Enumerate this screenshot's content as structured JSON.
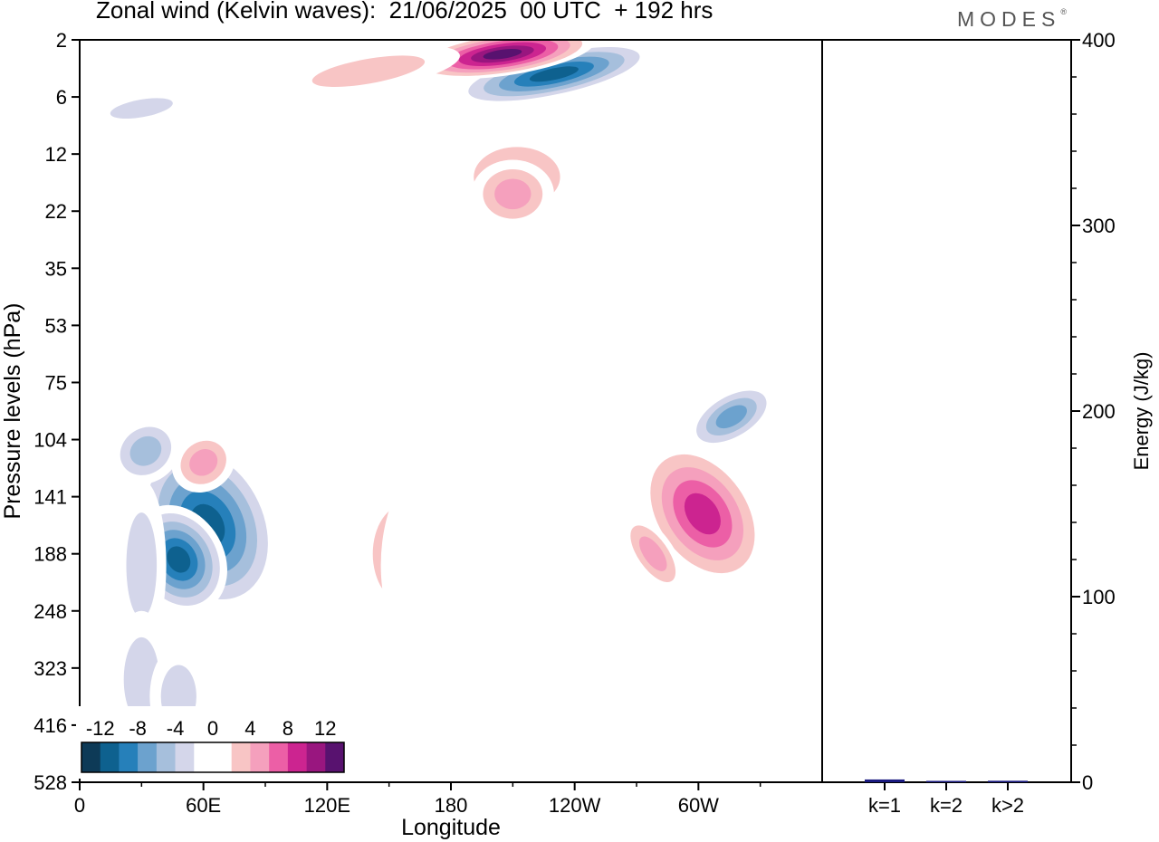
{
  "title": "Zonal wind (Kelvin waves):  21/06/2025  00 UTC  + 192 hrs",
  "brand": "MODES",
  "brand_mark": "®",
  "chart_data": [
    {
      "type": "heatmap",
      "xlabel": "Longitude",
      "ylabel": "Pressure levels (hPa)",
      "x_ticks": [
        "0",
        "60E",
        "120E",
        "180",
        "120W",
        "60W"
      ],
      "x_tick_values": [
        0,
        60,
        120,
        180,
        240,
        300
      ],
      "xlim": [
        0,
        360
      ],
      "y_ticks": [
        "2",
        "6",
        "12",
        "22",
        "35",
        "53",
        "75",
        "104",
        "141",
        "188",
        "248",
        "323",
        "416",
        "528"
      ],
      "y_reversed": true,
      "colorbar": {
        "labels": [
          "-12",
          "-8",
          "-4",
          "0",
          "4",
          "8",
          "12"
        ],
        "colors": [
          "#0d3a57",
          "#0e618f",
          "#2680ba",
          "#6ca2ce",
          "#a6bfdc",
          "#d4d6ea",
          "#ffffff",
          "#ffffff",
          "#f8c5c5",
          "#f5a0bd",
          "#ec5fa6",
          "#cc2490",
          "#99167f",
          "#58126f"
        ]
      },
      "blobs": [
        {
          "lon": 62,
          "lev": 8.5,
          "rx": 32,
          "ry": 1.6,
          "rot": -25,
          "value": -12
        },
        {
          "lon": 48,
          "lev": 9.1,
          "rx": 22,
          "ry": 1.0,
          "rot": -30,
          "value": -12
        },
        {
          "lon": 32,
          "lev": 7.2,
          "rx": 18,
          "ry": 0.55,
          "rot": -35,
          "value": -7
        },
        {
          "lon": 30,
          "lev": 9.2,
          "rx": 12,
          "ry": 1.5,
          "rot": 0,
          "value": -4
        },
        {
          "lon": 30,
          "lev": 11.2,
          "rx": 14,
          "ry": 1.2,
          "rot": 0,
          "value": -4
        },
        {
          "lon": 48,
          "lev": 11.5,
          "rx": 14,
          "ry": 0.9,
          "rot": 0,
          "value": -4
        },
        {
          "lon": 85,
          "lev": 11.5,
          "rx": 10,
          "ry": 1.4,
          "rot": 0,
          "value": -3
        },
        {
          "lon": 110,
          "lev": 11.6,
          "rx": 8,
          "ry": 1.3,
          "rot": 0,
          "value": -3
        },
        {
          "lon": 60,
          "lev": 7.4,
          "rx": 16,
          "ry": 0.5,
          "rot": -35,
          "value": 6
        },
        {
          "lon": 18,
          "lev": 6.1,
          "rx": 12,
          "ry": 0.45,
          "rot": -25,
          "value": 3
        },
        {
          "lon": 158,
          "lev": 9.0,
          "rx": 22,
          "ry": 1.2,
          "rot": 0,
          "value": 6
        },
        {
          "lon": 182,
          "lev": 9.2,
          "rx": 36,
          "ry": 2.1,
          "rot": 0,
          "value": 3
        },
        {
          "lon": 200,
          "lev": 11.0,
          "rx": 30,
          "ry": 1.4,
          "rot": 0,
          "value": 2
        },
        {
          "lon": 232,
          "lev": 9.2,
          "rx": 14,
          "ry": 1.2,
          "rot": 0,
          "value": 3
        },
        {
          "lon": 258,
          "lev": 8.4,
          "rx": 20,
          "ry": 1.2,
          "rot": -30,
          "value": 3
        },
        {
          "lon": 218,
          "lev": 6.3,
          "rx": 36,
          "ry": 0.45,
          "rot": -12,
          "value": 3
        },
        {
          "lon": 302,
          "lev": 8.3,
          "rx": 26,
          "ry": 1.4,
          "rot": -35,
          "value": 11
        },
        {
          "lon": 278,
          "lev": 9.0,
          "rx": 10,
          "ry": 0.8,
          "rot": -35,
          "value": 6
        },
        {
          "lon": 316,
          "lev": 6.6,
          "rx": 24,
          "ry": 0.45,
          "rot": -30,
          "value": -8
        },
        {
          "lon": 300,
          "lev": 5.4,
          "rx": 20,
          "ry": 0.4,
          "rot": -25,
          "value": 3
        },
        {
          "lon": 342,
          "lev": 9.5,
          "rx": 16,
          "ry": 1.3,
          "rot": 0,
          "value": -3
        },
        {
          "lon": 212,
          "lev": 2.4,
          "rx": 34,
          "ry": 0.85,
          "rot": 0,
          "value": 5
        },
        {
          "lon": 210,
          "lev": 2.7,
          "rx": 20,
          "ry": 0.6,
          "rot": 0,
          "value": 7
        },
        {
          "lon": 230,
          "lev": 0.6,
          "rx": 50,
          "ry": 0.42,
          "rot": -12,
          "value": -12
        },
        {
          "lon": 205,
          "lev": 0.25,
          "rx": 45,
          "ry": 0.38,
          "rot": -8,
          "value": 14
        },
        {
          "lon": 140,
          "lev": 0.55,
          "rx": 45,
          "ry": 0.35,
          "rot": -10,
          "value": 5
        },
        {
          "lon": 60,
          "lev": 0.75,
          "rx": 40,
          "ry": 0.28,
          "rot": -5,
          "value": 3
        },
        {
          "lon": 30,
          "lev": 1.2,
          "rx": 25,
          "ry": 0.25,
          "rot": -10,
          "value": -4
        },
        {
          "lon": 80,
          "lev": 4.5,
          "rx": 22,
          "ry": 0.35,
          "rot": 0,
          "value": -2
        },
        {
          "lon": 270,
          "lev": 1.3,
          "rx": 28,
          "ry": 0.35,
          "rot": 0,
          "value": -3
        },
        {
          "lon": 330,
          "lev": 3.2,
          "rx": 20,
          "ry": 1.0,
          "rot": -30,
          "value": -2
        },
        {
          "lon": 250,
          "lev": 1.7,
          "rx": 22,
          "ry": 0.3,
          "rot": 0,
          "value": 3
        }
      ]
    },
    {
      "type": "bar",
      "categories": [
        "k=1",
        "k=2",
        "k>2"
      ],
      "values": [
        1.5,
        0.5,
        0.8
      ],
      "ylabel": "Energy (J/kg)",
      "ylim": [
        0,
        400
      ],
      "y_ticks": [
        "0",
        "100",
        "200",
        "300",
        "400"
      ],
      "y_tick_values": [
        0,
        100,
        200,
        300,
        400
      ],
      "bar_color": "#1a1a80"
    }
  ]
}
